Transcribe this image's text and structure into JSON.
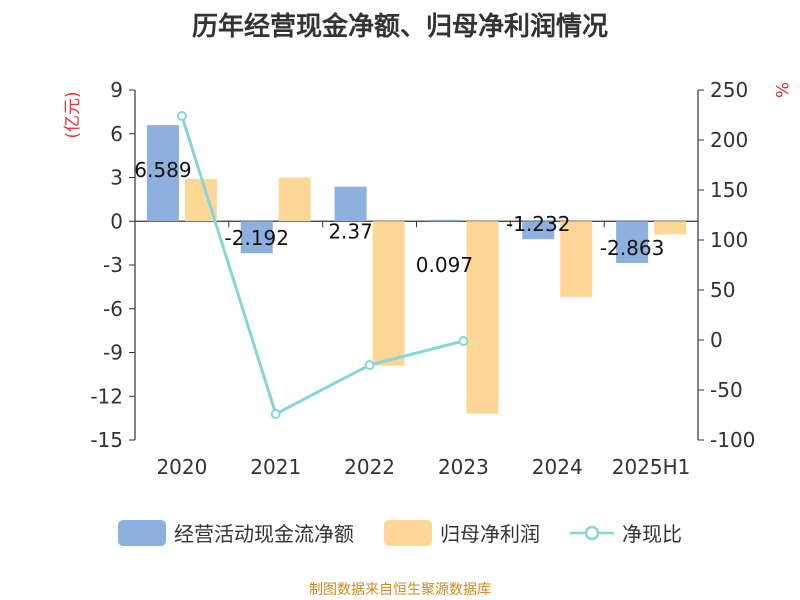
{
  "title": "历年经营现金净额、归母净利润情况",
  "source": "制图数据来自恒生聚源数据库",
  "chart_data": {
    "type": "bar",
    "title": "历年经营现金净额、归母净利润情况",
    "categories": [
      "2020",
      "2021",
      "2022",
      "2023",
      "2024",
      "2025H1"
    ],
    "y_left": {
      "label": "(亿元)",
      "ticks": [
        "9",
        "6",
        "3",
        "0",
        "-3",
        "-6",
        "-9",
        "-12",
        "-15"
      ],
      "ylim": [
        -15,
        9
      ]
    },
    "y_right": {
      "label": "%",
      "ticks": [
        "250",
        "200",
        "150",
        "100",
        "50",
        "0",
        "-50",
        "-100"
      ],
      "ylim": [
        -100,
        250
      ]
    },
    "series": [
      {
        "name": "经营活动现金流净额",
        "type": "bar",
        "axis": "left",
        "color": "#8eb0de",
        "values": [
          6.589,
          -2.192,
          2.37,
          0.097,
          -1.232,
          -2.863
        ],
        "labels": [
          "6.589",
          "-2.192",
          "2.37",
          "0.097",
          "-1.232",
          "-2.863"
        ]
      },
      {
        "name": "归母净利润",
        "type": "bar",
        "axis": "left",
        "color": "#fdd795",
        "values": [
          2.9,
          3.0,
          -9.9,
          -13.2,
          -5.2,
          -0.9
        ]
      },
      {
        "name": "净现比",
        "type": "line",
        "axis": "right",
        "color": "#86d5d8",
        "values": [
          224,
          -74,
          -25,
          -1,
          null,
          null
        ]
      }
    ],
    "grid": false,
    "legend_position": "bottom"
  }
}
